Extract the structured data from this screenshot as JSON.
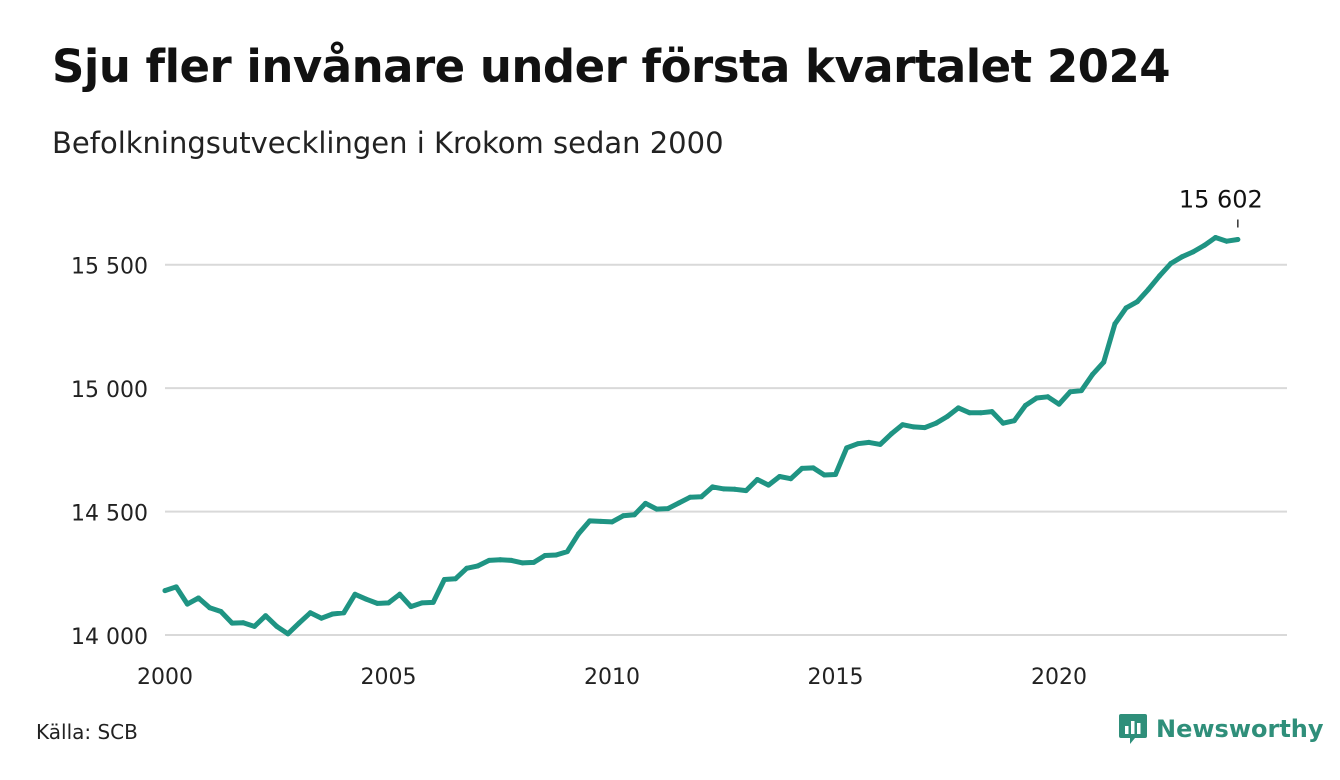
{
  "header": {
    "title": "Sju fler invånare under första kvartalet 2024",
    "subtitle": "Befolkningsutvecklingen i Krokom sedan 2000"
  },
  "footer": {
    "source": "Källa: SCB",
    "brand": "Newsworthy",
    "brand_icon": "newsworthy-logo-icon"
  },
  "colors": {
    "line": "#1f9483",
    "grid": "#d9d9d9",
    "brand": "#2f8f7a"
  },
  "chart_data": {
    "type": "line",
    "title": "Sju fler invånare under första kvartalet 2024",
    "subtitle": "Befolkningsutvecklingen i Krokom sedan 2000",
    "xlabel": "",
    "ylabel": "",
    "xlim": [
      2000,
      2025.1
    ],
    "ylim": [
      14000,
      15600
    ],
    "grid": true,
    "x_ticks": [
      {
        "value": 2000,
        "label": "2000"
      },
      {
        "value": 2005,
        "label": "2005"
      },
      {
        "value": 2010,
        "label": "2010"
      },
      {
        "value": 2015,
        "label": "2015"
      },
      {
        "value": 2020,
        "label": "2020"
      }
    ],
    "y_ticks": [
      {
        "value": 14000,
        "label": "14 000"
      },
      {
        "value": 14500,
        "label": "14 500"
      },
      {
        "value": 15000,
        "label": "15 000"
      },
      {
        "value": 15500,
        "label": "15 500"
      }
    ],
    "annotation": {
      "x": 2024.0,
      "y": 15602,
      "label": "15 602"
    },
    "series": [
      {
        "values": [
          [
            2000.0,
            14180
          ],
          [
            2000.25,
            14195
          ],
          [
            2000.5,
            14125
          ],
          [
            2000.75,
            14150
          ],
          [
            2001.0,
            14110
          ],
          [
            2001.25,
            14095
          ],
          [
            2001.5,
            14048
          ],
          [
            2001.75,
            14050
          ],
          [
            2002.0,
            14035
          ],
          [
            2002.25,
            14078
          ],
          [
            2002.5,
            14035
          ],
          [
            2002.75,
            14005
          ],
          [
            2003.0,
            14048
          ],
          [
            2003.25,
            14090
          ],
          [
            2003.5,
            14068
          ],
          [
            2003.75,
            14085
          ],
          [
            2004.0,
            14090
          ],
          [
            2004.25,
            14165
          ],
          [
            2004.5,
            14145
          ],
          [
            2004.75,
            14128
          ],
          [
            2005.0,
            14130
          ],
          [
            2005.25,
            14165
          ],
          [
            2005.5,
            14115
          ],
          [
            2005.75,
            14130
          ],
          [
            2006.0,
            14132
          ],
          [
            2006.25,
            14225
          ],
          [
            2006.5,
            14228
          ],
          [
            2006.75,
            14270
          ],
          [
            2007.0,
            14280
          ],
          [
            2007.25,
            14302
          ],
          [
            2007.5,
            14305
          ],
          [
            2007.75,
            14302
          ],
          [
            2008.0,
            14292
          ],
          [
            2008.25,
            14294
          ],
          [
            2008.5,
            14322
          ],
          [
            2008.75,
            14324
          ],
          [
            2009.0,
            14338
          ],
          [
            2009.25,
            14410
          ],
          [
            2009.5,
            14462
          ],
          [
            2009.75,
            14460
          ],
          [
            2010.0,
            14458
          ],
          [
            2010.25,
            14483
          ],
          [
            2010.5,
            14487
          ],
          [
            2010.75,
            14533
          ],
          [
            2011.0,
            14510
          ],
          [
            2011.25,
            14512
          ],
          [
            2011.5,
            14535
          ],
          [
            2011.75,
            14558
          ],
          [
            2012.0,
            14560
          ],
          [
            2012.25,
            14600
          ],
          [
            2012.5,
            14592
          ],
          [
            2012.75,
            14590
          ],
          [
            2013.0,
            14585
          ],
          [
            2013.25,
            14630
          ],
          [
            2013.5,
            14607
          ],
          [
            2013.75,
            14642
          ],
          [
            2014.0,
            14633
          ],
          [
            2014.25,
            14675
          ],
          [
            2014.5,
            14677
          ],
          [
            2014.75,
            14648
          ],
          [
            2015.0,
            14650
          ],
          [
            2015.25,
            14758
          ],
          [
            2015.5,
            14775
          ],
          [
            2015.75,
            14780
          ],
          [
            2016.0,
            14772
          ],
          [
            2016.25,
            14815
          ],
          [
            2016.5,
            14852
          ],
          [
            2016.75,
            14843
          ],
          [
            2017.0,
            14840
          ],
          [
            2017.25,
            14858
          ],
          [
            2017.5,
            14885
          ],
          [
            2017.75,
            14920
          ],
          [
            2018.0,
            14900
          ],
          [
            2018.25,
            14900
          ],
          [
            2018.5,
            14905
          ],
          [
            2018.75,
            14858
          ],
          [
            2019.0,
            14868
          ],
          [
            2019.25,
            14930
          ],
          [
            2019.5,
            14960
          ],
          [
            2019.75,
            14965
          ],
          [
            2020.0,
            14935
          ],
          [
            2020.25,
            14985
          ],
          [
            2020.5,
            14990
          ],
          [
            2020.75,
            15055
          ],
          [
            2021.0,
            15105
          ],
          [
            2021.25,
            15260
          ],
          [
            2021.5,
            15325
          ],
          [
            2021.75,
            15350
          ],
          [
            2022.0,
            15400
          ],
          [
            2022.25,
            15455
          ],
          [
            2022.5,
            15505
          ],
          [
            2022.75,
            15532
          ],
          [
            2023.0,
            15552
          ],
          [
            2023.25,
            15578
          ],
          [
            2023.5,
            15610
          ],
          [
            2023.75,
            15595
          ],
          [
            2024.0,
            15602
          ]
        ]
      }
    ]
  }
}
